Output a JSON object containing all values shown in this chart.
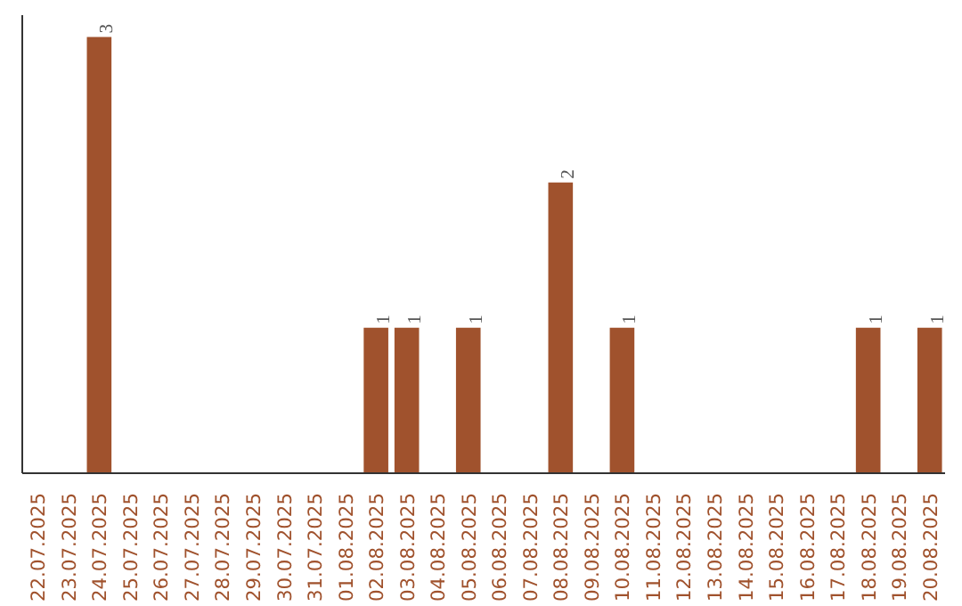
{
  "chart_data": {
    "type": "bar",
    "categories": [
      "22.07.2025",
      "23.07.2025",
      "24.07.2025",
      "25.07.2025",
      "26.07.2025",
      "27.07.2025",
      "28.07.2025",
      "29.07.2025",
      "30.07.2025",
      "31.07.2025",
      "01.08.2025",
      "02.08.2025",
      "03.08.2025",
      "04.08.2025",
      "05.08.2025",
      "06.08.2025",
      "07.08.2025",
      "08.08.2025",
      "09.08.2025",
      "10.08.2025",
      "11.08.2025",
      "12.08.2025",
      "13.08.2025",
      "14.08.2025",
      "15.08.2025",
      "16.08.2025",
      "17.08.2025",
      "18.08.2025",
      "19.08.2025",
      "20.08.2025"
    ],
    "values": [
      0,
      0,
      3,
      0,
      0,
      0,
      0,
      0,
      0,
      0,
      0,
      1,
      1,
      0,
      1,
      0,
      0,
      2,
      0,
      1,
      0,
      0,
      0,
      0,
      0,
      0,
      0,
      1,
      0,
      1
    ],
    "value_labels": [
      null,
      null,
      "3",
      null,
      null,
      null,
      null,
      null,
      null,
      null,
      null,
      "1",
      "1",
      null,
      "1",
      null,
      null,
      "2",
      null,
      "1",
      null,
      null,
      null,
      null,
      null,
      null,
      null,
      "1",
      null,
      "1"
    ],
    "color": "#a0522d",
    "ylim": [
      0,
      3.15
    ],
    "tick_labels": "x",
    "grid": false
  }
}
